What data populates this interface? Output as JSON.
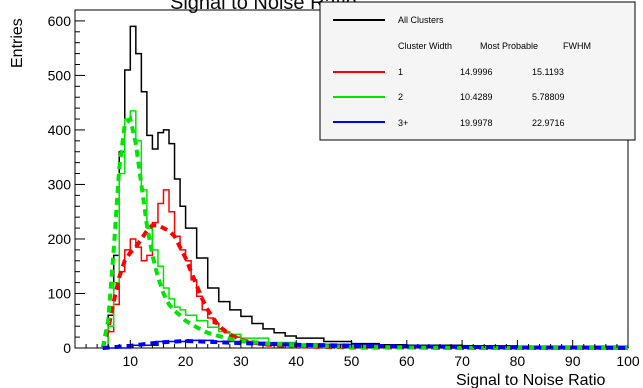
{
  "chart_data": {
    "type": "line",
    "title": "Signal to Noise Ratio",
    "xlabel": "Signal to Noise Ratio",
    "ylabel": "Entries",
    "xlim": [
      0,
      100
    ],
    "ylim": [
      0,
      620
    ],
    "xticks": [
      10,
      20,
      30,
      40,
      50,
      60,
      70,
      80,
      90,
      100
    ],
    "yticks": [
      0,
      100,
      200,
      300,
      400,
      500,
      600
    ],
    "grid": false,
    "legend_position": "top-right",
    "legend": {
      "header": {
        "name": "All Clusters",
        "color": "#000000"
      },
      "columns": [
        "Cluster Width",
        "Most Probable",
        "FWHM"
      ],
      "rows": [
        {
          "label": "1",
          "most_probable": "14.9996",
          "fwhm": "15.1193",
          "color": "#ff0000"
        },
        {
          "label": "2",
          "most_probable": "10.4289",
          "fwhm": "5.78809",
          "color": "#00e600"
        },
        {
          "label": "3+",
          "most_probable": "19.9978",
          "fwhm": "22.9716",
          "color": "#0000ff"
        }
      ]
    },
    "series": [
      {
        "name": "All Clusters",
        "color": "#000000",
        "style": "step",
        "x": [
          5,
          6,
          7,
          8,
          9,
          10,
          11,
          12,
          13,
          14,
          15,
          16,
          17,
          18,
          19,
          20,
          22,
          24,
          26,
          28,
          30,
          32,
          34,
          36,
          38,
          40,
          45,
          50,
          55,
          60,
          70,
          80,
          90,
          100
        ],
        "y": [
          0,
          60,
          170,
          360,
          510,
          590,
          540,
          470,
          390,
          365,
          395,
          400,
          375,
          310,
          260,
          220,
          165,
          110,
          85,
          70,
          58,
          45,
          35,
          28,
          22,
          18,
          12,
          8,
          6,
          5,
          4,
          3,
          3,
          3
        ]
      },
      {
        "name": "1",
        "color": "#ff0000",
        "style": "step",
        "x": [
          5,
          6,
          7,
          8,
          9,
          10,
          11,
          12,
          13,
          14,
          15,
          16,
          17,
          18,
          19,
          20,
          21,
          22,
          23,
          24,
          25,
          26,
          27,
          28,
          30,
          32,
          35,
          40,
          50,
          60,
          70,
          80,
          90,
          100
        ],
        "y": [
          0,
          30,
          80,
          140,
          180,
          200,
          185,
          160,
          170,
          230,
          265,
          290,
          250,
          205,
          180,
          160,
          125,
          95,
          70,
          55,
          45,
          35,
          28,
          20,
          12,
          8,
          5,
          3,
          2,
          1,
          1,
          0,
          0,
          0
        ]
      },
      {
        "name": "2",
        "color": "#00e600",
        "style": "step",
        "x": [
          5,
          6,
          7,
          8,
          9,
          10,
          11,
          12,
          13,
          14,
          15,
          16,
          17,
          18,
          19,
          20,
          22,
          24,
          26,
          28,
          30,
          35,
          40,
          50,
          60,
          70,
          80,
          90,
          100
        ],
        "y": [
          0,
          40,
          120,
          320,
          420,
          435,
          380,
          290,
          220,
          180,
          150,
          110,
          90,
          75,
          70,
          60,
          50,
          38,
          30,
          25,
          18,
          10,
          7,
          3,
          1,
          0,
          0,
          0,
          0
        ]
      },
      {
        "name": "3+",
        "color": "#0000ff",
        "style": "step",
        "x": [
          5,
          10,
          15,
          20,
          25,
          30,
          35,
          40,
          45,
          50,
          55,
          60,
          70,
          80,
          90,
          100
        ],
        "y": [
          0,
          5,
          12,
          14,
          12,
          10,
          8,
          7,
          6,
          5,
          4,
          3,
          2,
          1,
          1,
          0
        ]
      }
    ],
    "fits": [
      {
        "color": "#ff0000",
        "dash": true,
        "x": [
          5,
          6,
          7,
          8,
          9,
          10,
          11,
          12,
          13,
          14,
          15,
          16,
          17,
          18,
          19,
          20,
          21,
          22,
          23,
          24,
          25,
          26,
          28,
          30,
          32,
          35,
          40,
          50,
          60,
          70,
          80,
          90,
          100
        ],
        "y": [
          0,
          35,
          85,
          130,
          160,
          175,
          185,
          200,
          215,
          225,
          225,
          220,
          215,
          205,
          185,
          165,
          140,
          115,
          90,
          70,
          55,
          40,
          25,
          15,
          10,
          6,
          3,
          1,
          1,
          0,
          0,
          0,
          0
        ]
      },
      {
        "color": "#00e600",
        "dash": true,
        "x": [
          5,
          6,
          7,
          8,
          9,
          10,
          11,
          12,
          13,
          14,
          15,
          16,
          17,
          18,
          19,
          20,
          22,
          24,
          26,
          28,
          30,
          35,
          40,
          50,
          60,
          70,
          80,
          90,
          100
        ],
        "y": [
          0,
          50,
          180,
          330,
          410,
          420,
          375,
          300,
          225,
          170,
          130,
          100,
          80,
          68,
          60,
          50,
          38,
          28,
          22,
          17,
          13,
          8,
          5,
          2,
          1,
          0,
          0,
          0,
          0
        ]
      },
      {
        "color": "#0000ff",
        "dash": true,
        "x": [
          5,
          10,
          15,
          20,
          25,
          30,
          40,
          50,
          60,
          70,
          80,
          90,
          100
        ],
        "y": [
          0,
          4,
          10,
          13,
          11,
          9,
          6,
          4,
          3,
          2,
          1,
          1,
          0
        ]
      }
    ]
  }
}
